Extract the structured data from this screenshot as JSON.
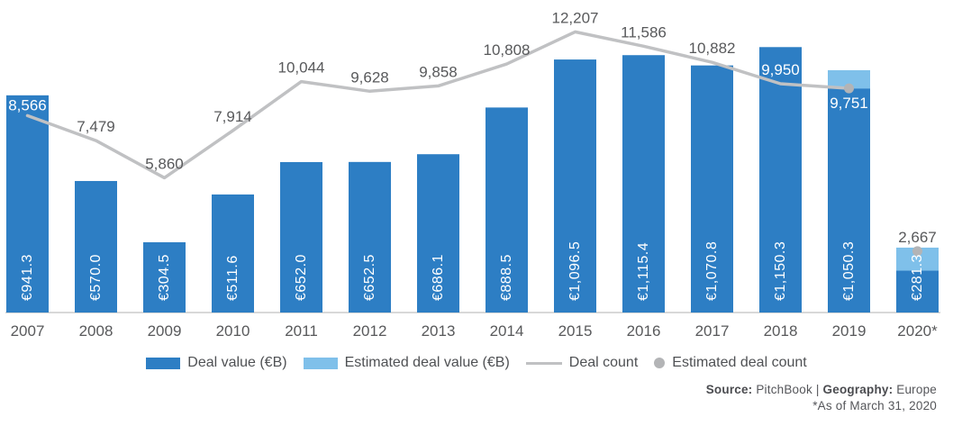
{
  "chart_data": {
    "type": "bar",
    "title": "",
    "categories": [
      "2007",
      "2008",
      "2009",
      "2010",
      "2011",
      "2012",
      "2013",
      "2014",
      "2015",
      "2016",
      "2017",
      "2018",
      "2019",
      "2020*"
    ],
    "series": [
      {
        "name": "Deal value (€B)",
        "values": [
          941.3,
          570.0,
          304.5,
          511.6,
          652.0,
          652.5,
          686.1,
          888.5,
          1096.5,
          1115.4,
          1070.8,
          1150.3,
          1050.3,
          281.3
        ],
        "labels": [
          "€941.3",
          "€570.0",
          "€304.5",
          "€511.6",
          "€652.0",
          "€652.5",
          "€686.1",
          "€888.5",
          "€1,096.5",
          "€1,115.4",
          "€1,070.8",
          "€1,150.3",
          "€1,050.3",
          "€281.3"
        ]
      },
      {
        "name": "Estimated deal value (€B)",
        "values_approx": [
          0,
          0,
          0,
          0,
          0,
          0,
          0,
          0,
          0,
          0,
          0,
          0,
          80,
          100
        ]
      },
      {
        "name": "Deal count",
        "values": [
          8566,
          7479,
          5860,
          7914,
          10044,
          9628,
          9858,
          10808,
          12207,
          11586,
          10882,
          9950,
          9751,
          2667
        ],
        "labels": [
          "8,566",
          "7,479",
          "5,860",
          "7,914",
          "10,044",
          "9,628",
          "9,858",
          "10,808",
          "12,207",
          "11,586",
          "10,882",
          "9,950",
          "9,751",
          "2,667"
        ]
      },
      {
        "name": "Estimated deal count",
        "marker_categories": [
          "2019",
          "2020*"
        ]
      }
    ],
    "xlabel": "",
    "ylabel": "",
    "grid": false,
    "legend_position": "bottom"
  },
  "colors": {
    "bar": "#2d7ec4",
    "bar_estimated": "#7fc0ea",
    "line": "#c0c1c3",
    "dot": "#b3b4b6",
    "label_on_bar": "#ffffff",
    "count_label": "#58595b",
    "axis_label": "#58595b",
    "axis_line": "#d8d8d8"
  },
  "legend": {
    "items": [
      {
        "label": "Deal value (€B)",
        "swatch": "bar",
        "color": "#2d7ec4"
      },
      {
        "label": "Estimated deal value (€B)",
        "swatch": "bar",
        "color": "#7fc0ea"
      },
      {
        "label": "Deal count",
        "swatch": "line",
        "color": "#c0c1c3"
      },
      {
        "label": "Estimated deal count",
        "swatch": "dot",
        "color": "#b3b4b6"
      }
    ]
  },
  "source": {
    "bold1": "Source:",
    "text1": " PitchBook | ",
    "bold2": "Geography:",
    "text2": " Europe",
    "footnote": "*As of March 31, 2020"
  }
}
